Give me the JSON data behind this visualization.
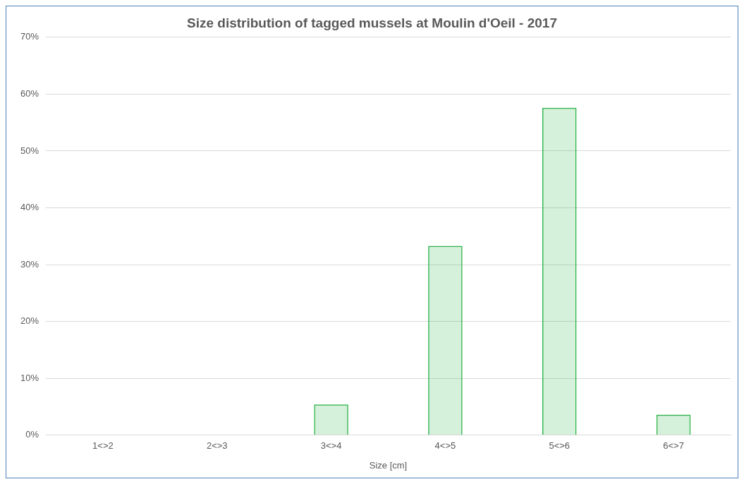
{
  "chart_data": {
    "type": "bar",
    "title": "Size distribution of tagged mussels at Moulin d'Oeil - 2017",
    "xlabel": "Size [cm]",
    "categories": [
      "1<>2",
      "2<>3",
      "3<>4",
      "4<>5",
      "5<>6",
      "6<>7"
    ],
    "values": [
      0,
      0,
      5.4,
      33.3,
      57.6,
      3.6
    ],
    "color": "#2db34a",
    "ylim": [
      0,
      70
    ],
    "yticks": [
      {
        "value": 0,
        "label": "0%"
      },
      {
        "value": 10,
        "label": "10%"
      },
      {
        "value": 20,
        "label": "20%"
      },
      {
        "value": 30,
        "label": "30%"
      },
      {
        "value": 40,
        "label": "40%"
      },
      {
        "value": 50,
        "label": "50%"
      },
      {
        "value": 60,
        "label": "60%"
      },
      {
        "value": 70,
        "label": "70%"
      }
    ],
    "grid": "y",
    "legend": false
  }
}
